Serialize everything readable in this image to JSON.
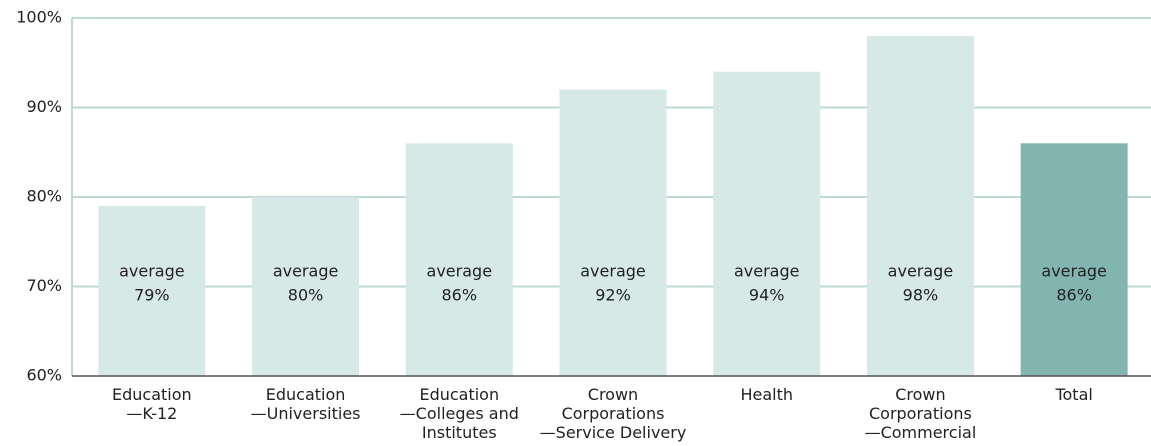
{
  "chart_data": {
    "type": "bar",
    "categories": [
      [
        "Education",
        "—K-12"
      ],
      [
        "Education",
        "—Universities"
      ],
      [
        "Education",
        "—Colleges and",
        "Institutes"
      ],
      [
        "Crown",
        "Corporations",
        "—Service Delivery"
      ],
      [
        "Health"
      ],
      [
        "Crown",
        "Corporations",
        "—Commercial"
      ],
      [
        "Total"
      ]
    ],
    "values": [
      79,
      80,
      86,
      92,
      94,
      98,
      86
    ],
    "value_labels": [
      "79%",
      "80%",
      "86%",
      "92%",
      "94%",
      "98%",
      "86%"
    ],
    "label_caption": "average",
    "colors": [
      "#d6e9e7",
      "#d6e9e7",
      "#d6e9e7",
      "#d6e9e7",
      "#d6e9e7",
      "#d6e9e7",
      "#82b5b0"
    ],
    "ylim": [
      60,
      100
    ],
    "yticks": [
      {
        "value": 60,
        "label": "60%"
      },
      {
        "value": 70,
        "label": "70%"
      },
      {
        "value": 80,
        "label": "80%"
      },
      {
        "value": 90,
        "label": "90%"
      },
      {
        "value": 100,
        "label": "100%"
      }
    ],
    "grid": true
  }
}
